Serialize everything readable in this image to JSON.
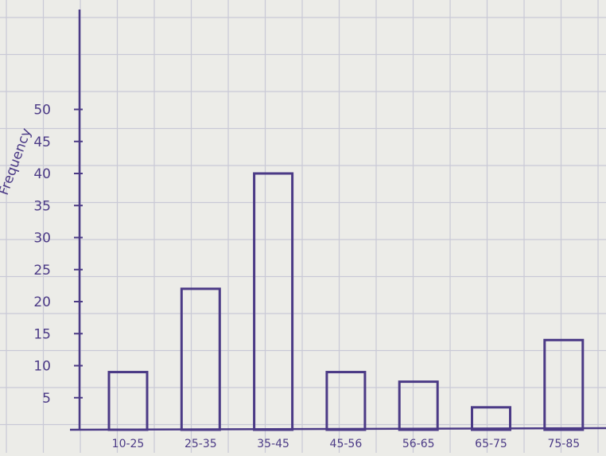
{
  "chart_data": {
    "type": "bar",
    "title": "",
    "xlabel": "",
    "ylabel": "Frequency",
    "categories": [
      "10-25",
      "25-35",
      "35-45",
      "45-56",
      "56-65",
      "65-75",
      "75-85"
    ],
    "values": [
      9,
      22,
      40,
      9,
      7.5,
      3.5,
      14
    ],
    "ylim": [
      0,
      50
    ],
    "yticks": [
      5,
      10,
      15,
      20,
      25,
      30,
      35,
      40,
      45,
      50
    ],
    "grid": true,
    "legend": "none"
  },
  "colors": {
    "ink": "#4b3a86",
    "grid": "#c9c9d6",
    "paper": "#ecece8"
  }
}
